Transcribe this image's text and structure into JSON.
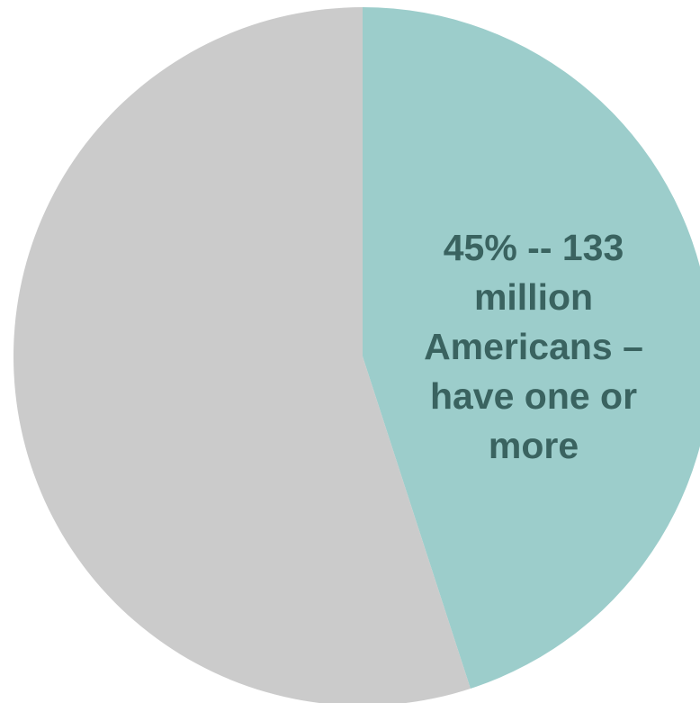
{
  "chart_data": {
    "type": "pie",
    "slices": [
      {
        "value": 45,
        "label_lines": [
          "45% -- 133",
          "million",
          "Americans –",
          "have one or",
          "more"
        ],
        "color": "#9CCDCB",
        "label_color": "#3A6360"
      },
      {
        "value": 55,
        "label_lines": [],
        "color": "#CBCBCB",
        "label_color": "#3A6360"
      }
    ],
    "start_angle_deg": 0,
    "direction": "clockwise",
    "legend": "none"
  }
}
